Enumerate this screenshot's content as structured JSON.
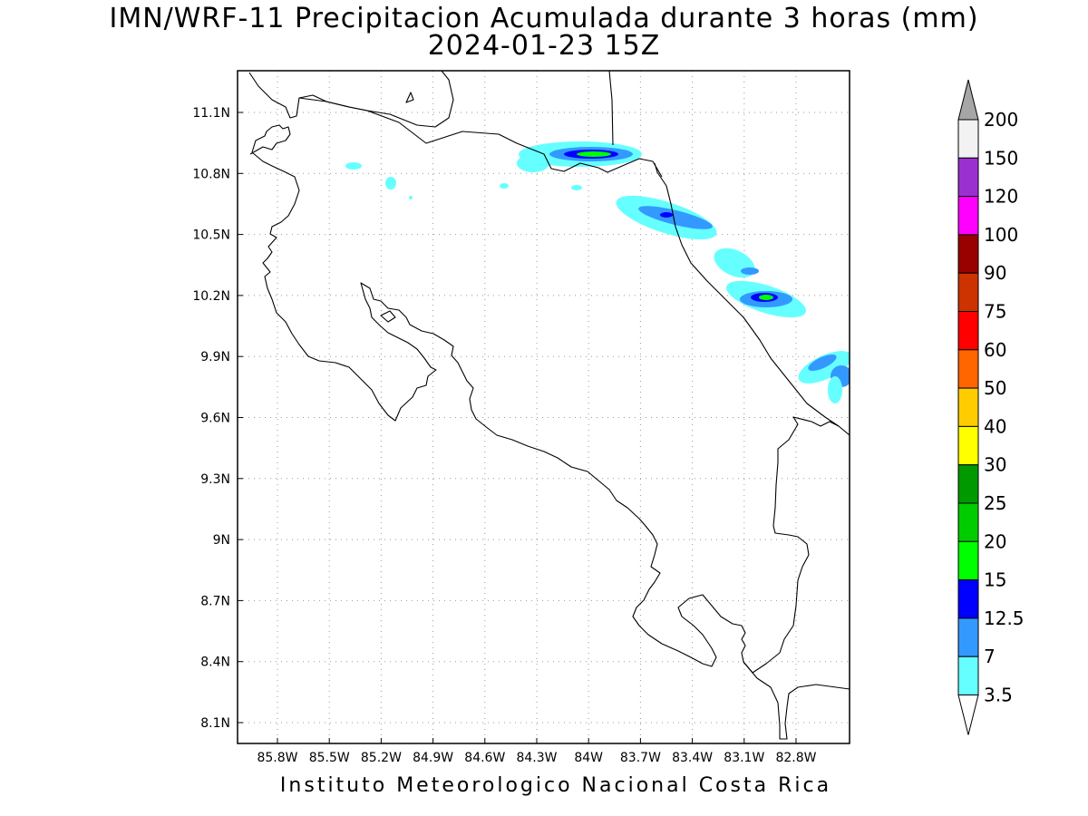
{
  "title": {
    "line1": "IMN/WRF-11 Precipitacion Acumulada durante 3 horas (mm)",
    "line2": "2024-01-23 15Z"
  },
  "footer": "Instituto Meteorologico Nacional Costa Rica",
  "axes": {
    "y_ticks": [
      "11.1N",
      "10.8N",
      "10.5N",
      "10.2N",
      "9.9N",
      "9.6N",
      "9.3N",
      "9N",
      "8.7N",
      "8.4N",
      "8.1N"
    ],
    "x_ticks": [
      "85.8W",
      "85.5W",
      "85.2W",
      "84.9W",
      "84.6W",
      "84.3W",
      "84W",
      "83.7W",
      "83.4W",
      "83.1W",
      "82.8W"
    ],
    "grid": "dotted"
  },
  "colorbar": {
    "labels": [
      "200",
      "150",
      "120",
      "100",
      "90",
      "75",
      "60",
      "50",
      "40",
      "30",
      "25",
      "20",
      "15",
      "12.5",
      "7",
      "3.5"
    ],
    "colors": [
      "#f2f2f2",
      "#9b30d0",
      "#ff00ff",
      "#990000",
      "#cc3300",
      "#ff0000",
      "#ff6600",
      "#ffcc00",
      "#ffff00",
      "#009900",
      "#00cc00",
      "#00ff00",
      "#0000ff",
      "#3399ff",
      "#66ffff"
    ],
    "top_arrow_color": "#a6a6a6",
    "bottom_arrow_color": "#ffffff"
  },
  "precip_palette": {
    "light_cyan": "#66ffff",
    "light_blue": "#3399ff",
    "blue": "#0000ff",
    "green": "#00ff00"
  }
}
